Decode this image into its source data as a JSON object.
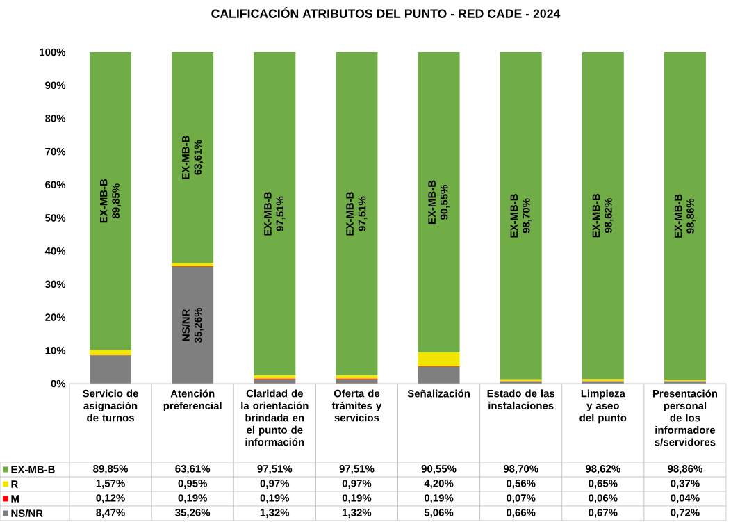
{
  "chart_data": {
    "type": "bar",
    "stacked": true,
    "title": "CALIFICACIÓN ATRIBUTOS DEL PUNTO - RED CADE - 2024",
    "categories": [
      "Servicio de asignación de turnos",
      "Atención preferencial",
      "Claridad de la orientación brindada en el punto de información",
      "Oferta de trámites y servicios",
      "Señalización",
      "Estado de las instalaciones",
      "Limpieza y aseo del punto",
      "Presentación personal de los informadore s/servidores"
    ],
    "series": [
      {
        "name": "NS/NR",
        "color": "#7f7f7f",
        "values": [
          8.47,
          35.26,
          1.32,
          1.32,
          5.06,
          0.66,
          0.67,
          0.72
        ],
        "value_labels": [
          "8,47%",
          "35,26%",
          "1,32%",
          "1,32%",
          "5,06%",
          "0,66%",
          "0,67%",
          "0,72%"
        ]
      },
      {
        "name": "M",
        "color": "#ff0000",
        "values": [
          0.12,
          0.19,
          0.19,
          0.19,
          0.19,
          0.07,
          0.06,
          0.04
        ],
        "value_labels": [
          "0,12%",
          "0,19%",
          "0,19%",
          "0,19%",
          "0,19%",
          "0,07%",
          "0,06%",
          "0,04%"
        ]
      },
      {
        "name": "R",
        "color": "#f2e600",
        "values": [
          1.57,
          0.95,
          0.97,
          0.97,
          4.2,
          0.56,
          0.65,
          0.37
        ],
        "value_labels": [
          "1,57%",
          "0,95%",
          "0,97%",
          "0,97%",
          "4,20%",
          "0,56%",
          "0,65%",
          "0,37%"
        ]
      },
      {
        "name": "EX-MB-B",
        "color": "#70ad47",
        "values": [
          89.85,
          63.61,
          97.51,
          97.51,
          90.55,
          98.7,
          98.62,
          98.86
        ],
        "value_labels": [
          "89,85%",
          "63,61%",
          "97,51%",
          "97,51%",
          "90,55%",
          "98,70%",
          "98,62%",
          "98,86%"
        ]
      }
    ],
    "ylim": [
      0,
      100
    ],
    "yticks": [
      {
        "value": 0,
        "label": "0%"
      },
      {
        "value": 10,
        "label": "10%"
      },
      {
        "value": 20,
        "label": "20%"
      },
      {
        "value": 30,
        "label": "30%"
      },
      {
        "value": 40,
        "label": "40%"
      },
      {
        "value": 50,
        "label": "50%"
      },
      {
        "value": 60,
        "label": "60%"
      },
      {
        "value": 70,
        "label": "70%"
      },
      {
        "value": 80,
        "label": "80%"
      },
      {
        "value": 90,
        "label": "90%"
      },
      {
        "value": 100,
        "label": "100%"
      }
    ],
    "legend": "bottom left"
  }
}
